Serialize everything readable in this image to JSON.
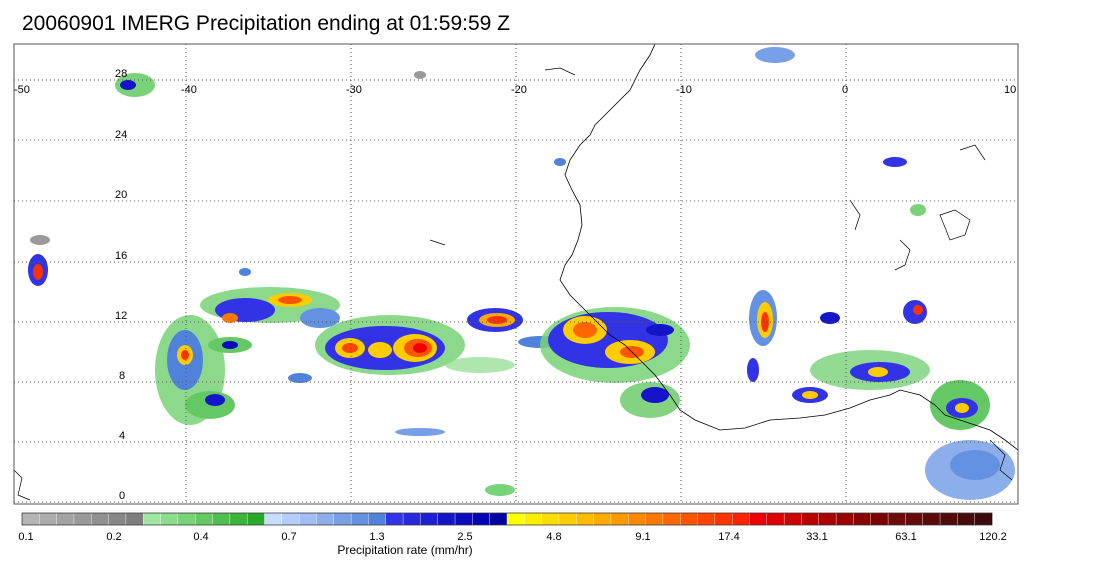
{
  "title": "20060901 IMERG Precipitation ending at 01:59:59 Z",
  "map": {
    "lon_range": [
      -50,
      10
    ],
    "lat_range": [
      -0.5,
      29.5
    ],
    "lon_ticks": [
      -50,
      -40,
      -30,
      -20,
      -10,
      0,
      10
    ],
    "lon_tick_labels": [
      "-50",
      "-40",
      "-30",
      "-20",
      "-10",
      "0",
      "10"
    ],
    "lat_ticks": [
      0,
      4,
      8,
      12,
      16,
      20,
      24,
      28
    ],
    "lat_tick_labels": [
      "0",
      "4",
      "8",
      "12",
      "16",
      "20",
      "24",
      "28"
    ],
    "grid": true,
    "grid_style": "dotted"
  },
  "colorbar": {
    "title": "Precipitation rate (mm/hr)",
    "labels": [
      "0.1",
      "0.2",
      "0.4",
      "0.7",
      "1.3",
      "2.5",
      "4.8",
      "9.1",
      "17.4",
      "33.1",
      "63.1",
      "120.2"
    ],
    "colors": [
      "#b4b4b4",
      "#ababab",
      "#a2a2a2",
      "#999999",
      "#909090",
      "#878787",
      "#7e7e7e",
      "#a0e6a0",
      "#8cdc8c",
      "#78d278",
      "#64c864",
      "#50be50",
      "#3cb43c",
      "#28aa28",
      "#c8dcff",
      "#b4cdfa",
      "#a0bef5",
      "#8cafeb",
      "#78a0e6",
      "#6491e1",
      "#5082dc",
      "#3232e6",
      "#2828dc",
      "#1e1ed2",
      "#1414c8",
      "#0a0abe",
      "#0000b4",
      "#0000a0",
      "#ffff00",
      "#ffee00",
      "#ffdd00",
      "#ffcc00",
      "#ffbb00",
      "#ffaa00",
      "#ff9900",
      "#ff8800",
      "#ff7700",
      "#ff6600",
      "#ff5500",
      "#ff4400",
      "#ff3300",
      "#ff2200",
      "#ee0000",
      "#dd0000",
      "#cc0000",
      "#bb0000",
      "#aa0000",
      "#990000",
      "#880000",
      "#7a0000",
      "#6e0a0a",
      "#640a0a",
      "#5a0a0a",
      "#500a0a",
      "#460a0a",
      "#3c0a0a"
    ]
  }
}
